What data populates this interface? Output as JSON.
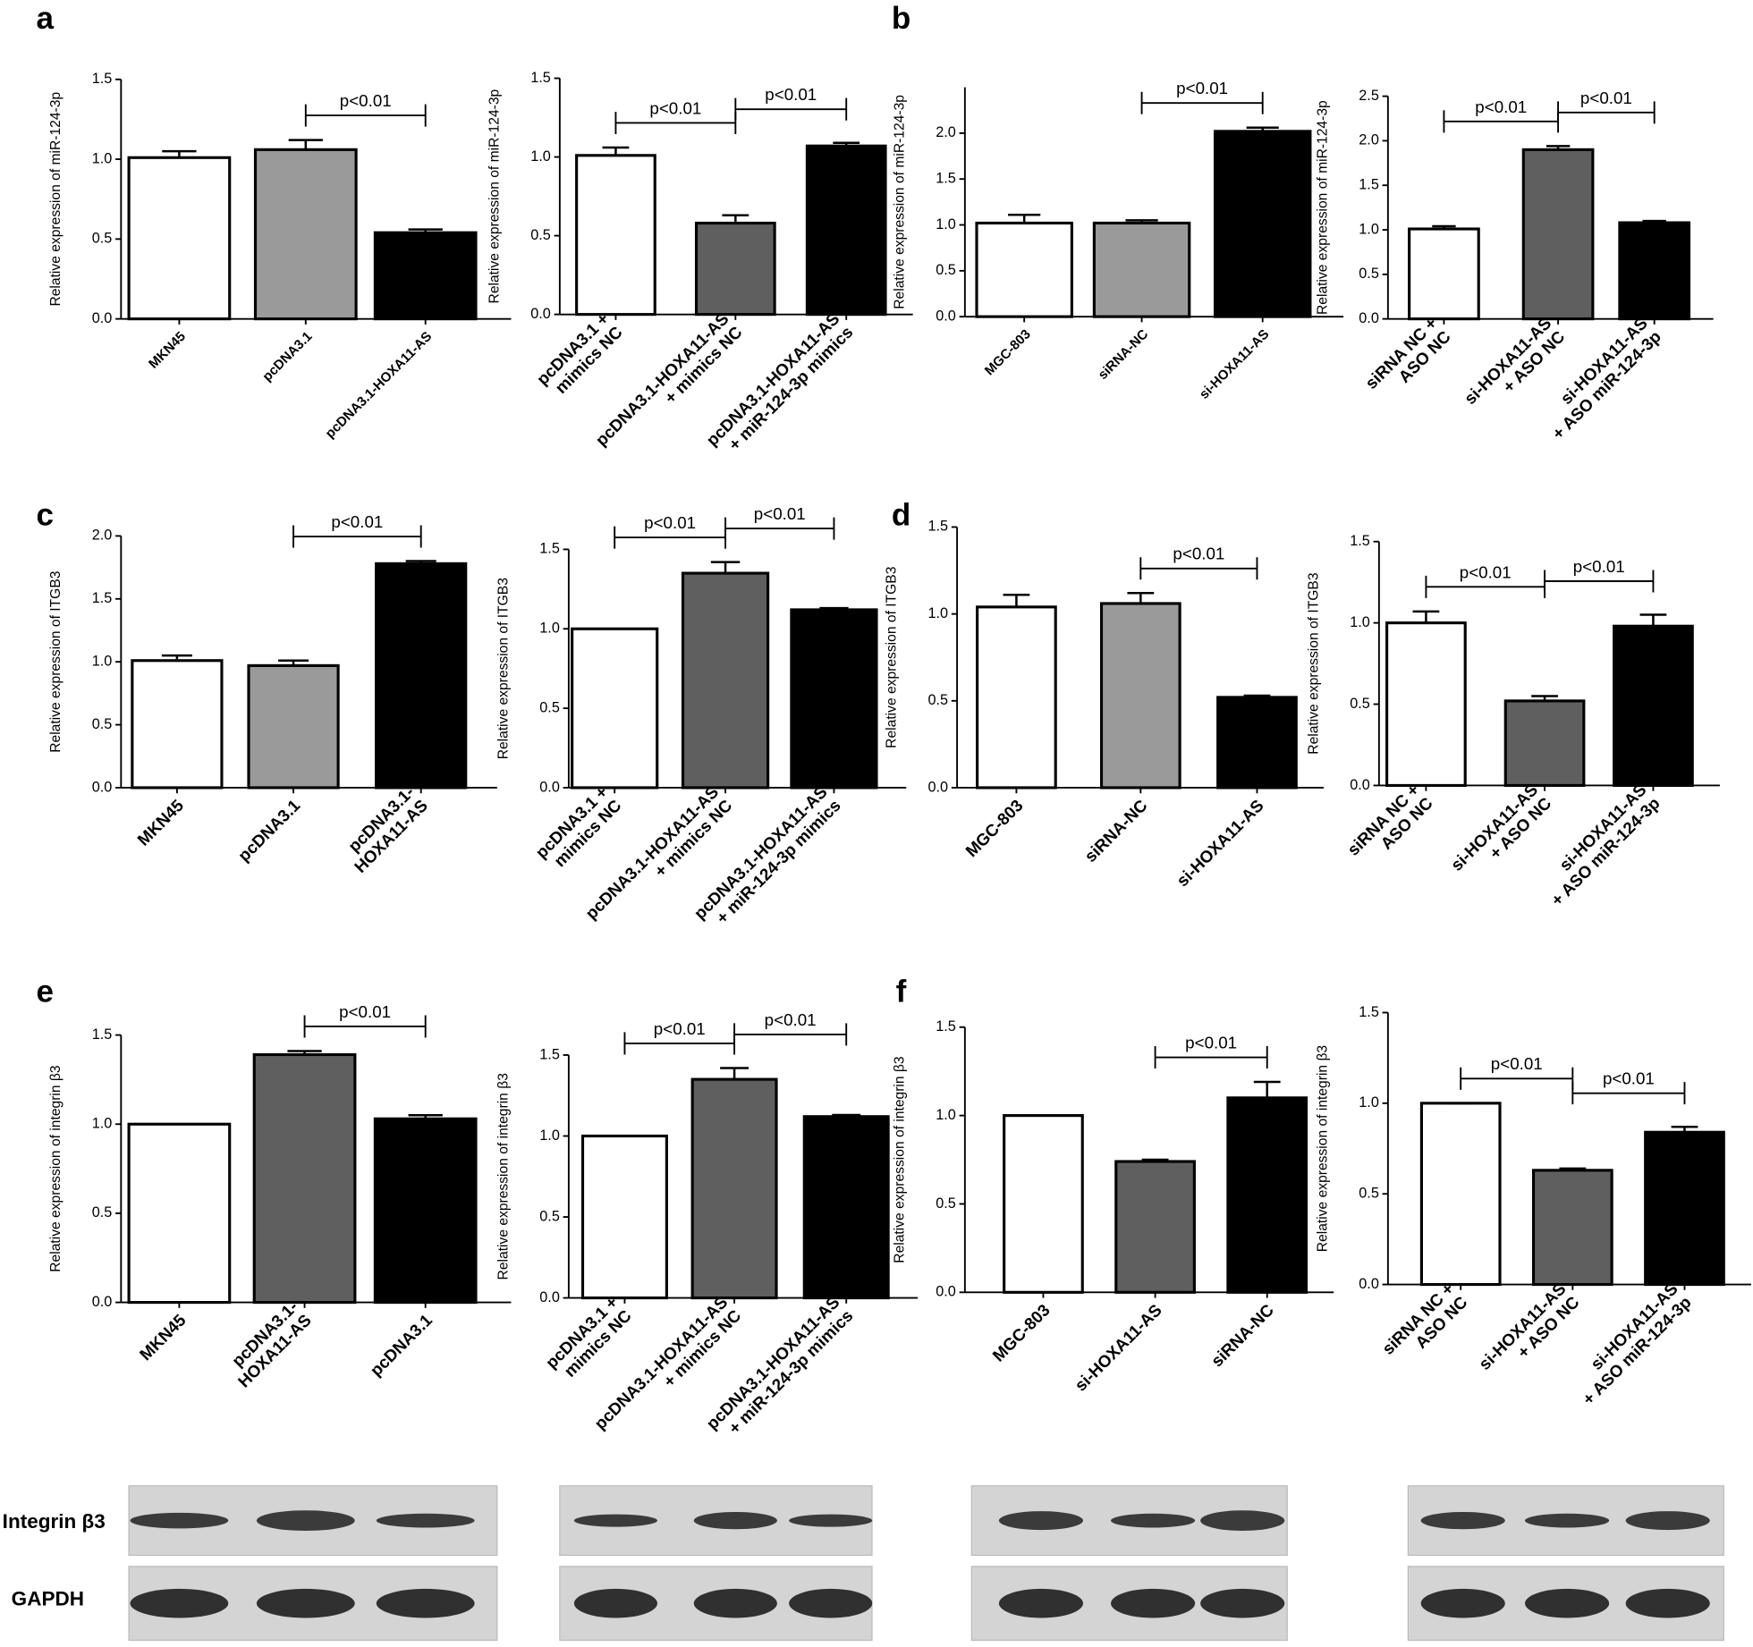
{
  "panels": [
    "a",
    "b",
    "c",
    "d",
    "e",
    "f"
  ],
  "blot_labels": [
    "Integrin β3",
    "GAPDH"
  ],
  "chart_data": [
    {
      "type": "bar",
      "ylabel": "Relative expression of miR-124-3p",
      "categories": [
        [
          "MKN45"
        ],
        [
          "pcDNA3.1"
        ],
        [
          "pcDNA3.1-HOXA11-AS"
        ]
      ],
      "values": [
        1.01,
        1.06,
        0.54
      ],
      "errors": [
        0.04,
        0.06,
        0.02
      ],
      "colors": [
        "#ffffff",
        "#9a9a9a",
        "#000000"
      ],
      "ylim": [
        0,
        1.5
      ],
      "yticks": [
        {
          "value": 0,
          "label": "0.0"
        },
        {
          "value": 0.5,
          "label": "0.5"
        },
        {
          "value": 1,
          "label": "1.0"
        },
        {
          "value": 1.5,
          "label": "1.5"
        }
      ],
      "annotations": [
        {
          "text": "p<0.01",
          "between": [
            1,
            2
          ]
        }
      ]
    },
    {
      "type": "bar",
      "ylabel": "Relative expression of miR-124-3p",
      "categories": [
        [
          "pcDNA3.1 +",
          "mimics NC"
        ],
        [
          "pcDNA3.1-HOXA11-AS",
          "+ mimics NC"
        ],
        [
          "pcDNA3.1-HOXA11-AS",
          "+ miR-124-3p mimics"
        ]
      ],
      "values": [
        1.01,
        0.58,
        1.07
      ],
      "errors": [
        0.05,
        0.05,
        0.02
      ],
      "colors": [
        "#ffffff",
        "#5f5f5f",
        "#000000"
      ],
      "ylim": [
        0,
        1.5
      ],
      "yticks": [
        {
          "value": 0,
          "label": "0.0"
        },
        {
          "value": 0.5,
          "label": "0.5"
        },
        {
          "value": 1,
          "label": "1.0"
        },
        {
          "value": 1.5,
          "label": "1.5"
        }
      ],
      "annotations": [
        {
          "text": "p<0.01",
          "between": [
            0,
            1
          ]
        },
        {
          "text": "p<0.01",
          "between": [
            1,
            2
          ]
        }
      ]
    },
    {
      "type": "bar",
      "ylabel": "Relative expression of miR-124-3p",
      "categories": [
        [
          "MGC-803"
        ],
        [
          "siRNA-NC"
        ],
        [
          "si-HOXA11-AS"
        ]
      ],
      "values": [
        1.02,
        1.02,
        2.02
      ],
      "errors": [
        0.09,
        0.03,
        0.04
      ],
      "colors": [
        "#ffffff",
        "#9a9a9a",
        "#000000"
      ],
      "ylim": [
        0,
        2.5
      ],
      "yticks": [
        {
          "value": 0,
          "label": "0.0"
        },
        {
          "value": 0.5,
          "label": "0.5"
        },
        {
          "value": 1,
          "label": "1.0"
        },
        {
          "value": 1.5,
          "label": "1.5"
        },
        {
          "value": 2,
          "label": "2.0"
        }
      ],
      "annotations": [
        {
          "text": "p<0.01",
          "between": [
            1,
            2
          ]
        }
      ]
    },
    {
      "type": "bar",
      "ylabel": "Relative expression of miR-124-3p",
      "categories": [
        [
          "siRNA NC +",
          "ASO NC"
        ],
        [
          "si-HOXA11-AS",
          "+ ASO NC"
        ],
        [
          "si-HOXA11-AS",
          "+ ASO miR-124-3p"
        ]
      ],
      "values": [
        1.01,
        1.9,
        1.08
      ],
      "errors": [
        0.03,
        0.04,
        0.02
      ],
      "colors": [
        "#ffffff",
        "#5f5f5f",
        "#000000"
      ],
      "ylim": [
        0,
        2.5
      ],
      "yticks": [
        {
          "value": 0,
          "label": "0.0"
        },
        {
          "value": 0.5,
          "label": "0.5"
        },
        {
          "value": 1,
          "label": "1.0"
        },
        {
          "value": 1.5,
          "label": "1.5"
        },
        {
          "value": 2,
          "label": "2.0"
        },
        {
          "value": 2.5,
          "label": "2.5"
        }
      ],
      "annotations": [
        {
          "text": "p<0.01",
          "between": [
            0,
            1
          ]
        },
        {
          "text": "p<0.01",
          "between": [
            1,
            2
          ]
        }
      ]
    },
    {
      "type": "bar",
      "ylabel": "Relative expression of ITGB3",
      "categories": [
        [
          "MKN45"
        ],
        [
          "pcDNA3.1"
        ],
        [
          "pcDNA3.1-",
          "HOXA11-AS"
        ]
      ],
      "values": [
        1.01,
        0.97,
        1.78
      ],
      "errors": [
        0.04,
        0.04,
        0.02
      ],
      "colors": [
        "#ffffff",
        "#9a9a9a",
        "#000000"
      ],
      "ylim": [
        0,
        2
      ],
      "yticks": [
        {
          "value": 0,
          "label": "0.0"
        },
        {
          "value": 0.5,
          "label": "0.5"
        },
        {
          "value": 1,
          "label": "1.0"
        },
        {
          "value": 1.5,
          "label": "1.5"
        },
        {
          "value": 2,
          "label": "2.0"
        }
      ],
      "annotations": [
        {
          "text": "p<0.01",
          "between": [
            1,
            2
          ]
        }
      ]
    },
    {
      "type": "bar",
      "ylabel": "Relative expression of ITGB3",
      "categories": [
        [
          "pcDNA3.1 +",
          "mimics NC"
        ],
        [
          "pcDNA3.1-HOXA11-AS",
          "+ mimics NC"
        ],
        [
          "pcDNA3.1-HOXA11-AS",
          "+ miR-124-3p mimics"
        ]
      ],
      "values": [
        1,
        1.35,
        1.12
      ],
      "errors": [
        0,
        0.07,
        0.01
      ],
      "colors": [
        "#ffffff",
        "#5f5f5f",
        "#000000"
      ],
      "ylim": [
        0,
        1.5
      ],
      "yticks": [
        {
          "value": 0,
          "label": "0.0"
        },
        {
          "value": 0.5,
          "label": "0.5"
        },
        {
          "value": 1,
          "label": "1.0"
        },
        {
          "value": 1.5,
          "label": "1.5"
        }
      ],
      "annotations": [
        {
          "text": "p<0.01",
          "between": [
            0,
            1
          ]
        },
        {
          "text": "p<0.01",
          "between": [
            1,
            2
          ]
        }
      ]
    },
    {
      "type": "bar",
      "ylabel": "Relative expression of ITGB3",
      "categories": [
        [
          "MGC-803"
        ],
        [
          "siRNA-NC"
        ],
        [
          "si-HOXA11-AS"
        ]
      ],
      "values": [
        1.04,
        1.06,
        0.52
      ],
      "errors": [
        0.07,
        0.06,
        0.01
      ],
      "colors": [
        "#ffffff",
        "#9a9a9a",
        "#000000"
      ],
      "ylim": [
        0,
        1.5
      ],
      "yticks": [
        {
          "value": 0,
          "label": "0.0"
        },
        {
          "value": 0.5,
          "label": "0.5"
        },
        {
          "value": 1,
          "label": "1.0"
        },
        {
          "value": 1.5,
          "label": "1.5"
        }
      ],
      "annotations": [
        {
          "text": "p<0.01",
          "between": [
            1,
            2
          ]
        }
      ]
    },
    {
      "type": "bar",
      "ylabel": "Relative expression of ITGB3",
      "categories": [
        [
          "siRNA NC +",
          "ASO NC"
        ],
        [
          "si-HOXA11-AS",
          "+ ASO NC"
        ],
        [
          "si-HOXA11-AS",
          "+ ASO miR-124-3p"
        ]
      ],
      "values": [
        1,
        0.52,
        0.98
      ],
      "errors": [
        0.07,
        0.03,
        0.07
      ],
      "colors": [
        "#ffffff",
        "#5f5f5f",
        "#000000"
      ],
      "ylim": [
        0,
        1.5
      ],
      "yticks": [
        {
          "value": 0,
          "label": "0.0"
        },
        {
          "value": 0.5,
          "label": "0.5"
        },
        {
          "value": 1,
          "label": "1.0"
        },
        {
          "value": 1.5,
          "label": "1.5"
        }
      ],
      "annotations": [
        {
          "text": "p<0.01",
          "between": [
            0,
            1
          ]
        },
        {
          "text": "p<0.01",
          "between": [
            1,
            2
          ]
        }
      ]
    },
    {
      "type": "bar",
      "ylabel": "Relative expression of integrin β3",
      "categories": [
        [
          "MKN45"
        ],
        [
          "pcDNA3.1-",
          "HOXA11-AS"
        ],
        [
          "pcDNA3.1"
        ]
      ],
      "values": [
        1,
        1.39,
        1.03
      ],
      "errors": [
        0,
        0.02,
        0.02
      ],
      "colors": [
        "#ffffff",
        "#5f5f5f",
        "#000000"
      ],
      "ylim": [
        0,
        1.5
      ],
      "yticks": [
        {
          "value": 0,
          "label": "0.0"
        },
        {
          "value": 0.5,
          "label": "0.5"
        },
        {
          "value": 1,
          "label": "1.0"
        },
        {
          "value": 1.5,
          "label": "1.5"
        }
      ],
      "annotations": [
        {
          "text": "p<0.01",
          "between": [
            1,
            2
          ]
        }
      ]
    },
    {
      "type": "bar",
      "ylabel": "Relative expression of integrin β3",
      "categories": [
        [
          "pcDNA3.1 +",
          "mimics NC"
        ],
        [
          "pcDNA3.1-HOXA11-AS",
          "+ mimics NC"
        ],
        [
          "pcDNA3.1-HOXA11-AS",
          "+ miR-124-3p mimics"
        ]
      ],
      "values": [
        1,
        1.35,
        1.12
      ],
      "errors": [
        0,
        0.07,
        0.01
      ],
      "colors": [
        "#ffffff",
        "#5f5f5f",
        "#000000"
      ],
      "ylim": [
        0,
        1.5
      ],
      "yticks": [
        {
          "value": 0,
          "label": "0.0"
        },
        {
          "value": 0.5,
          "label": "0.5"
        },
        {
          "value": 1,
          "label": "1.0"
        },
        {
          "value": 1.5,
          "label": "1.5"
        }
      ],
      "annotations": [
        {
          "text": "p<0.01",
          "between": [
            0,
            1
          ]
        },
        {
          "text": "p<0.01",
          "between": [
            1,
            2
          ]
        }
      ]
    },
    {
      "type": "bar",
      "ylabel": "Relative expression of integrin β3",
      "categories": [
        [
          "MGC-803"
        ],
        [
          "si-HOXA11-AS"
        ],
        [
          "siRNA-NC"
        ]
      ],
      "values": [
        1,
        0.74,
        1.1
      ],
      "errors": [
        0,
        0.01,
        0.09
      ],
      "colors": [
        "#ffffff",
        "#5f5f5f",
        "#000000"
      ],
      "ylim": [
        0,
        1.5
      ],
      "yticks": [
        {
          "value": 0,
          "label": "0.0"
        },
        {
          "value": 0.5,
          "label": "0.5"
        },
        {
          "value": 1,
          "label": "1.0"
        },
        {
          "value": 1.5,
          "label": "1.5"
        }
      ],
      "annotations": [
        {
          "text": "p<0.01",
          "between": [
            1,
            2
          ]
        }
      ]
    },
    {
      "type": "bar",
      "ylabel": "Relative expression of integrin β3",
      "categories": [
        [
          "siRNA NC +",
          "ASO NC"
        ],
        [
          "si-HOXA11-AS",
          "+ ASO NC"
        ],
        [
          "si-HOXA11-AS",
          "+ ASO miR-124-3p"
        ]
      ],
      "values": [
        1,
        0.63,
        0.84
      ],
      "errors": [
        0,
        0.01,
        0.03
      ],
      "colors": [
        "#ffffff",
        "#5f5f5f",
        "#000000"
      ],
      "ylim": [
        0,
        1.5
      ],
      "yticks": [
        {
          "value": 0,
          "label": "0.0"
        },
        {
          "value": 0.5,
          "label": "0.5"
        },
        {
          "value": 1,
          "label": "1.0"
        },
        {
          "value": 1.5,
          "label": "1.5"
        }
      ],
      "annotations": [
        {
          "text": "p<0.01",
          "between": [
            0,
            1
          ]
        },
        {
          "text": "p<0.01",
          "between": [
            1,
            2
          ]
        }
      ]
    }
  ]
}
